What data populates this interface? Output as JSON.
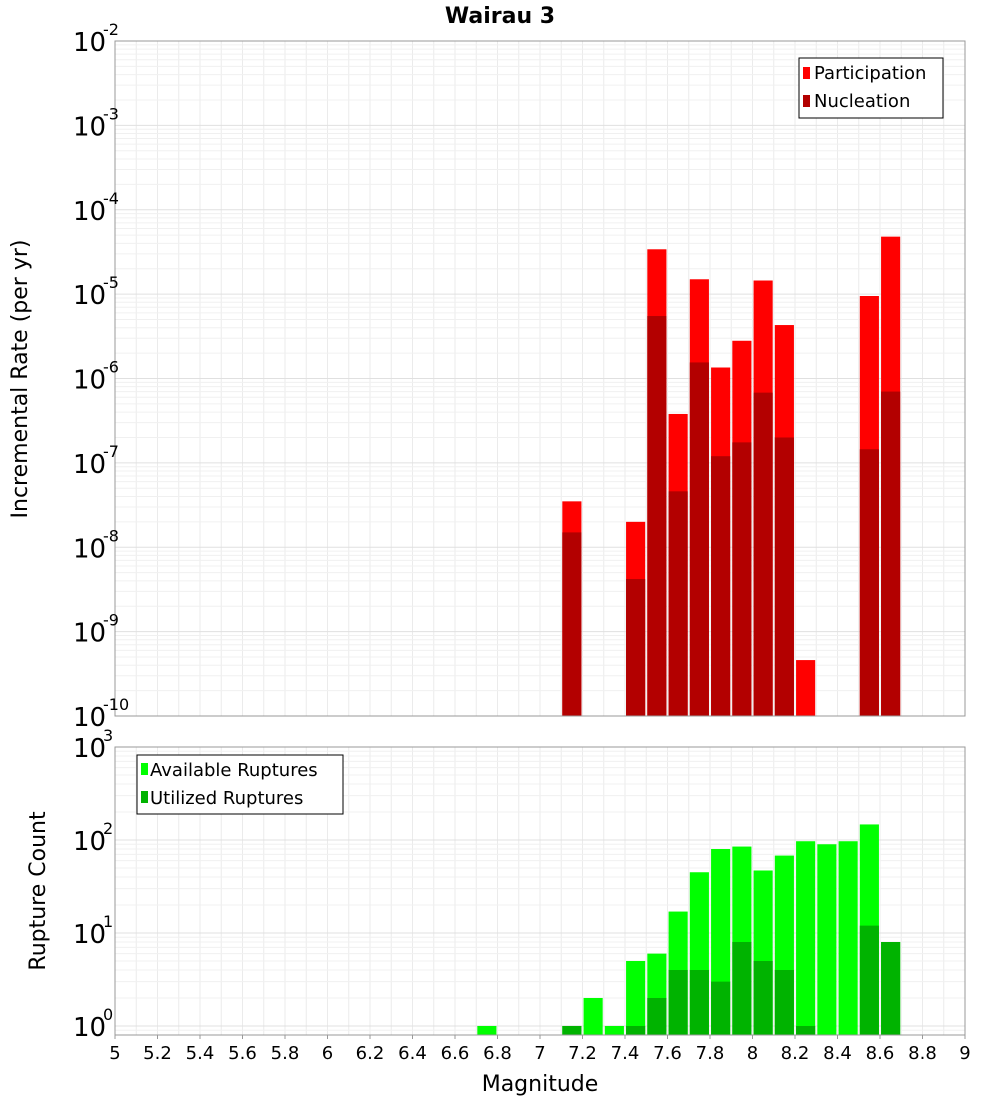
{
  "chart_data": [
    {
      "id": "rate",
      "type": "bar",
      "title": "Wairau 3",
      "xlabel": "",
      "ylabel": "Incremental Rate (per yr)",
      "yscale": "log",
      "ylim": [
        1e-10,
        0.01
      ],
      "xlim": [
        5,
        9
      ],
      "grid": true,
      "legend_position": "top-right",
      "y_ticks": [
        {
          "base": "10",
          "exp": "-10"
        },
        {
          "base": "10",
          "exp": "-9"
        },
        {
          "base": "10",
          "exp": "-8"
        },
        {
          "base": "10",
          "exp": "-7"
        },
        {
          "base": "10",
          "exp": "-6"
        },
        {
          "base": "10",
          "exp": "-5"
        },
        {
          "base": "10",
          "exp": "-4"
        },
        {
          "base": "10",
          "exp": "-3"
        },
        {
          "base": "10",
          "exp": "-2"
        }
      ],
      "series": [
        {
          "name": "Participation",
          "color": "#ff0000",
          "points": [
            [
              7.15,
              3.5e-08
            ],
            [
              7.45,
              2e-08
            ],
            [
              7.55,
              3.4e-05
            ],
            [
              7.65,
              3.8e-07
            ],
            [
              7.75,
              1.5e-05
            ],
            [
              7.85,
              1.35e-06
            ],
            [
              7.95,
              2.8e-06
            ],
            [
              8.05,
              1.45e-05
            ],
            [
              8.15,
              4.3e-06
            ],
            [
              8.25,
              4.6e-10
            ],
            [
              8.55,
              9.5e-06
            ],
            [
              8.65,
              4.8e-05
            ]
          ]
        },
        {
          "name": "Nucleation",
          "color": "#b30000",
          "points": [
            [
              7.15,
              1.5e-08
            ],
            [
              7.45,
              4.2e-09
            ],
            [
              7.55,
              5.5e-06
            ],
            [
              7.65,
              4.6e-08
            ],
            [
              7.75,
              1.55e-06
            ],
            [
              7.85,
              1.2e-07
            ],
            [
              7.95,
              1.75e-07
            ],
            [
              8.05,
              6.8e-07
            ],
            [
              8.15,
              2e-07
            ],
            [
              8.55,
              1.45e-07
            ],
            [
              8.65,
              7e-07
            ]
          ]
        }
      ]
    },
    {
      "id": "count",
      "type": "bar",
      "title": "",
      "xlabel": "Magnitude",
      "ylabel": "Rupture Count",
      "yscale": "log",
      "ylim": [
        0.8,
        1000
      ],
      "xlim": [
        5,
        9
      ],
      "grid": true,
      "legend_position": "top-left",
      "x_ticks": [
        "5",
        "5.2",
        "5.4",
        "5.6",
        "5.8",
        "6",
        "6.2",
        "6.4",
        "6.6",
        "6.8",
        "7",
        "7.2",
        "7.4",
        "7.6",
        "7.8",
        "8",
        "8.2",
        "8.4",
        "8.6",
        "8.8",
        "9"
      ],
      "y_ticks": [
        {
          "base": "10",
          "exp": "0"
        },
        {
          "base": "10",
          "exp": "1"
        },
        {
          "base": "10",
          "exp": "2"
        },
        {
          "base": "10",
          "exp": "3"
        }
      ],
      "series": [
        {
          "name": "Available Ruptures",
          "color": "#00ff00",
          "points": [
            [
              6.75,
              1
            ],
            [
              7.15,
              1
            ],
            [
              7.25,
              2
            ],
            [
              7.35,
              1
            ],
            [
              7.45,
              5
            ],
            [
              7.55,
              6
            ],
            [
              7.65,
              17
            ],
            [
              7.75,
              45
            ],
            [
              7.85,
              80
            ],
            [
              7.95,
              85
            ],
            [
              8.05,
              47
            ],
            [
              8.15,
              68
            ],
            [
              8.25,
              97
            ],
            [
              8.35,
              90
            ],
            [
              8.45,
              97
            ],
            [
              8.55,
              147
            ],
            [
              8.65,
              8
            ]
          ]
        },
        {
          "name": "Utilized Ruptures",
          "color": "#00b300",
          "points": [
            [
              7.15,
              1
            ],
            [
              7.45,
              1
            ],
            [
              7.55,
              2
            ],
            [
              7.65,
              4
            ],
            [
              7.75,
              4
            ],
            [
              7.85,
              3
            ],
            [
              7.95,
              8
            ],
            [
              8.05,
              5
            ],
            [
              8.15,
              4
            ],
            [
              8.25,
              1
            ],
            [
              8.55,
              12
            ],
            [
              8.65,
              8
            ]
          ]
        }
      ]
    }
  ]
}
